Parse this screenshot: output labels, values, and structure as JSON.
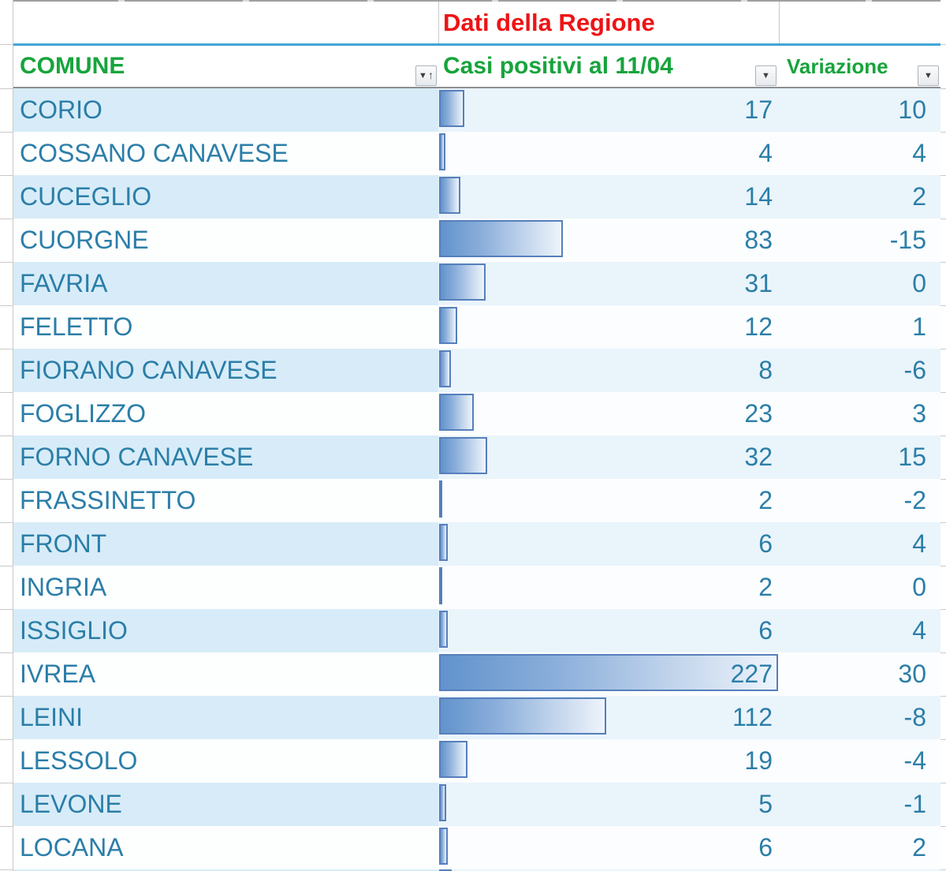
{
  "sheet": {
    "region_header": "Dati della Regione",
    "columns": {
      "comune": {
        "label": "COMUNE"
      },
      "casi": {
        "label": "Casi positivi al 11/04"
      },
      "variazione": {
        "label": "Variazione"
      }
    },
    "max_casi": 227,
    "rows": [
      {
        "comune": "CORIO",
        "casi": 17,
        "variazione": 10
      },
      {
        "comune": "COSSANO CANAVESE",
        "casi": 4,
        "variazione": 4
      },
      {
        "comune": "CUCEGLIO",
        "casi": 14,
        "variazione": 2
      },
      {
        "comune": "CUORGNE",
        "casi": 83,
        "variazione": -15
      },
      {
        "comune": "FAVRIA",
        "casi": 31,
        "variazione": 0
      },
      {
        "comune": "FELETTO",
        "casi": 12,
        "variazione": 1
      },
      {
        "comune": "FIORANO CANAVESE",
        "casi": 8,
        "variazione": -6
      },
      {
        "comune": "FOGLIZZO",
        "casi": 23,
        "variazione": 3
      },
      {
        "comune": "FORNO CANAVESE",
        "casi": 32,
        "variazione": 15
      },
      {
        "comune": "FRASSINETTO",
        "casi": 2,
        "variazione": -2
      },
      {
        "comune": "FRONT",
        "casi": 6,
        "variazione": 4
      },
      {
        "comune": "INGRIA",
        "casi": 2,
        "variazione": 0
      },
      {
        "comune": "ISSIGLIO",
        "casi": 6,
        "variazione": 4
      },
      {
        "comune": "IVREA",
        "casi": 227,
        "variazione": 30
      },
      {
        "comune": "LEINI",
        "casi": 112,
        "variazione": -8
      },
      {
        "comune": "LESSOLO",
        "casi": 19,
        "variazione": -4
      },
      {
        "comune": "LEVONE",
        "casi": 5,
        "variazione": -1
      },
      {
        "comune": "LOCANA",
        "casi": 6,
        "variazione": 2
      }
    ],
    "icons": {
      "comune_filter": "sort-ascending-filter-dropdown",
      "casi_filter": "filter-dropdown",
      "variazione_filter": "filter-dropdown"
    },
    "colors": {
      "title_red": "#ee1315",
      "header_green": "#17a43c",
      "cell_text_blue": "#2b7ea8",
      "band_blue": "#d7ecf8",
      "band_blue_light": "#eaf4fb",
      "bar_fill": "#6193cc",
      "bar_border": "#567fbc",
      "divider_blue": "#41a5d6"
    }
  }
}
